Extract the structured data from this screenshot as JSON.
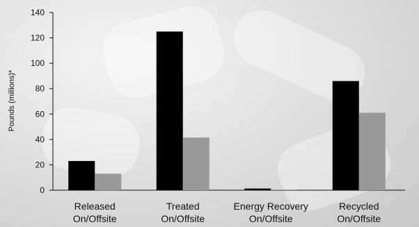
{
  "chart_data": {
    "type": "bar",
    "title": "",
    "xlabel": "",
    "ylabel": "Pounds (millions)*",
    "ylim": [
      0,
      140
    ],
    "yticks": [
      0,
      20,
      40,
      60,
      80,
      100,
      120,
      140
    ],
    "categories": [
      [
        "Released",
        "On/Offsite"
      ],
      [
        "Treated",
        "On/Offsite"
      ],
      [
        "Energy Recovery",
        "On/Offsite"
      ],
      [
        "Recycled",
        "On/Offsite"
      ]
    ],
    "series": [
      {
        "values": [
          23,
          125,
          1.3,
          86
        ],
        "color": "#000000"
      },
      {
        "values": [
          13,
          41.5,
          0.5,
          61
        ],
        "color": "#999999"
      }
    ],
    "grid": false,
    "legend": "none"
  }
}
